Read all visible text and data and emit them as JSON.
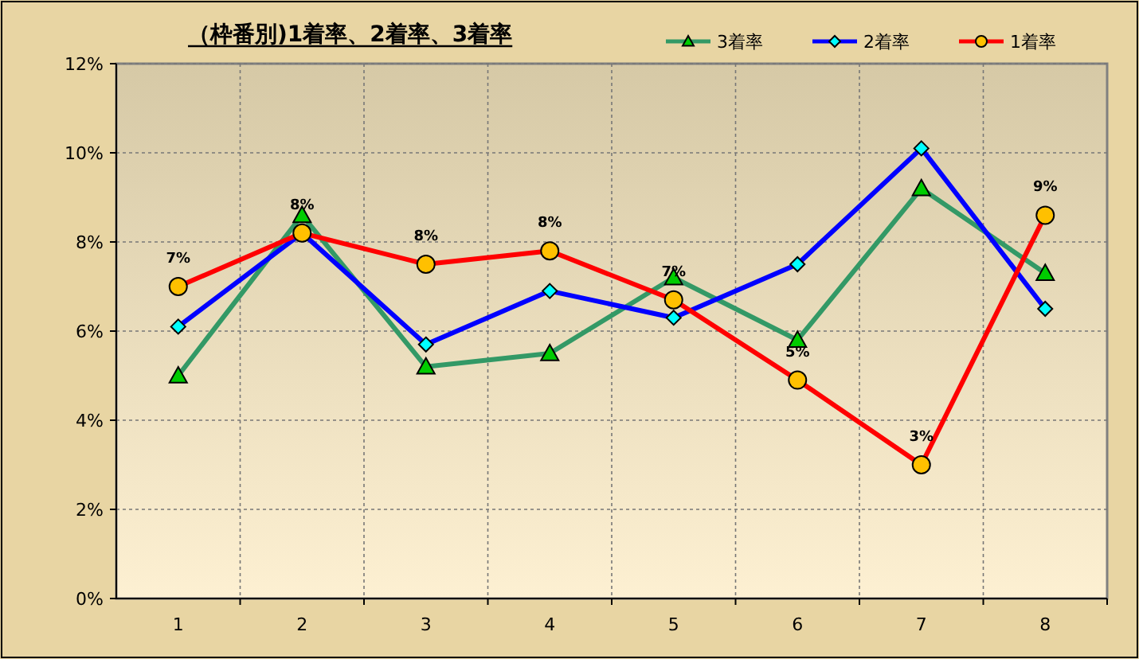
{
  "chart_data": {
    "type": "line",
    "title": "（枠番別)1着率、2着率、3着率",
    "categories": [
      "1",
      "2",
      "3",
      "4",
      "5",
      "6",
      "7",
      "8"
    ],
    "ylim": [
      0,
      12
    ],
    "yticks": [
      {
        "value": 0,
        "label": "0%"
      },
      {
        "value": 2,
        "label": "2%"
      },
      {
        "value": 4,
        "label": "4%"
      },
      {
        "value": 6,
        "label": "6%"
      },
      {
        "value": 8,
        "label": "8%"
      },
      {
        "value": 10,
        "label": "10%"
      },
      {
        "value": 12,
        "label": "12%"
      }
    ],
    "grid": true,
    "legend": "top right",
    "series": [
      {
        "name": "3着率",
        "color": "#339966",
        "marker": "triangle",
        "values": [
          5.0,
          8.6,
          5.2,
          5.5,
          7.2,
          5.8,
          9.2,
          7.3
        ]
      },
      {
        "name": "2着率",
        "color": "#0000ff",
        "marker": "diamond",
        "values": [
          6.1,
          8.2,
          5.7,
          6.9,
          6.3,
          7.5,
          10.1,
          6.5
        ]
      },
      {
        "name": "1着率",
        "color": "#ff0000",
        "marker": "circle",
        "values": [
          7.0,
          8.2,
          7.5,
          7.8,
          6.7,
          4.9,
          3.0,
          8.6
        ],
        "value_labels": [
          "7%",
          "8%",
          "8%",
          "8%",
          "7%",
          "5%",
          "3%",
          "9%"
        ]
      }
    ]
  }
}
